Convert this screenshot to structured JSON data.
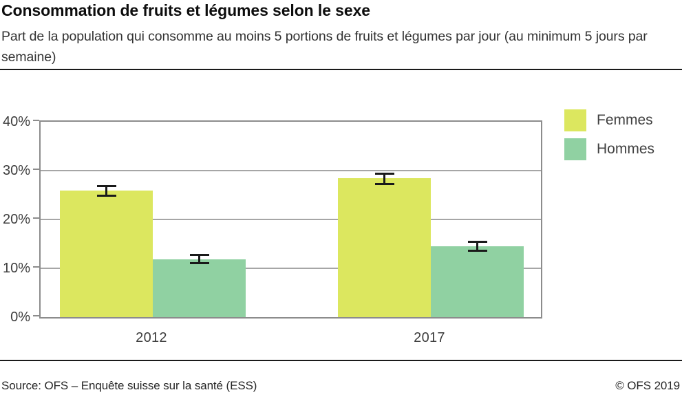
{
  "header": {
    "title": "Consommation de fruits et légumes selon le sexe",
    "subtitle": "Part de la population qui consomme au moins 5 portions de fruits et légumes par jour (au minimum 5 jours par semaine)"
  },
  "chart_data": {
    "type": "bar",
    "title": "Consommation de fruits et légumes selon le sexe",
    "categories": [
      "2012",
      "2017"
    ],
    "series": [
      {
        "name": "Femmes",
        "color": "#dce75f",
        "values": [
          25.9,
          28.4
        ],
        "ci_low": [
          24.9,
          27.3
        ],
        "ci_high": [
          26.9,
          29.4
        ]
      },
      {
        "name": "Hommes",
        "color": "#90d1a2",
        "values": [
          11.9,
          14.5
        ],
        "ci_low": [
          11.1,
          13.6
        ],
        "ci_high": [
          12.8,
          15.4
        ]
      }
    ],
    "ylabel": "",
    "xlabel": "",
    "ylim": [
      0,
      40
    ],
    "yticks": [
      0,
      10,
      20,
      30,
      40
    ],
    "ytick_suffix": "%",
    "grid": true,
    "error_bars": true,
    "legend_position": "top-right",
    "colors": {
      "gridline": "#a6a6a6",
      "frame": "#8c8c8c",
      "error_bar": "#1a1a1a"
    }
  },
  "footer": {
    "source": "Source: OFS – Enquête suisse sur la santé (ESS)",
    "copyright": "© OFS 2019"
  }
}
